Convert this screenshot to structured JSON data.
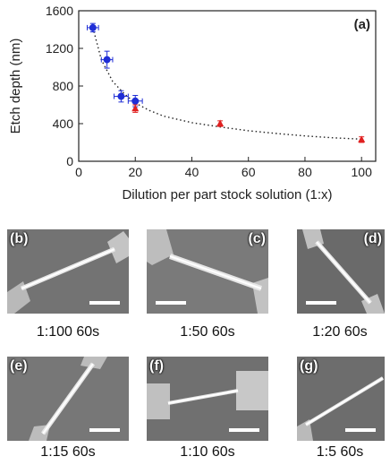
{
  "chart_data": {
    "type": "scatter",
    "panel_label": "(a)",
    "xlabel": "Dilution per part stock solution (1:x)",
    "ylabel": "Etch depth (nm)",
    "xlim": [
      0,
      105
    ],
    "ylim": [
      0,
      1600
    ],
    "xticks": [
      0,
      20,
      40,
      60,
      80,
      100
    ],
    "yticks": [
      0,
      400,
      800,
      1200,
      1600
    ],
    "grid": false,
    "series": [
      {
        "marker": "circle",
        "color": "#1f2ed6",
        "points": [
          {
            "x": 5,
            "y": 1420,
            "xerr": 2,
            "yerr": 45
          },
          {
            "x": 10,
            "y": 1080,
            "xerr": 2,
            "yerr": 90
          },
          {
            "x": 15,
            "y": 690,
            "xerr": 2.5,
            "yerr": 60
          },
          {
            "x": 20,
            "y": 640,
            "xerr": 2.5,
            "yerr": 60
          }
        ]
      },
      {
        "marker": "triangle",
        "color": "#e02020",
        "points": [
          {
            "x": 20,
            "y": 560,
            "xerr": 0,
            "yerr": 40
          },
          {
            "x": 50,
            "y": 400,
            "xerr": 0,
            "yerr": 30
          },
          {
            "x": 100,
            "y": 230,
            "xerr": 0,
            "yerr": 30
          }
        ]
      }
    ],
    "fit": {
      "style": "dotted",
      "x": [
        5,
        8,
        12,
        16,
        20,
        25,
        30,
        40,
        50,
        60,
        70,
        80,
        90,
        100
      ],
      "y": [
        1420,
        1080,
        850,
        720,
        620,
        540,
        480,
        410,
        365,
        325,
        295,
        270,
        250,
        235
      ]
    }
  },
  "panels": [
    {
      "label": "(b)",
      "caption": "1:100 60s"
    },
    {
      "label": "(c)",
      "caption": "1:50 60s"
    },
    {
      "label": "(d)",
      "caption": "1:20 60s"
    },
    {
      "label": "(e)",
      "caption": "1:15 60s"
    },
    {
      "label": "(f)",
      "caption": "1:10 60s"
    },
    {
      "label": "(g)",
      "caption": "1:5 60s"
    }
  ]
}
